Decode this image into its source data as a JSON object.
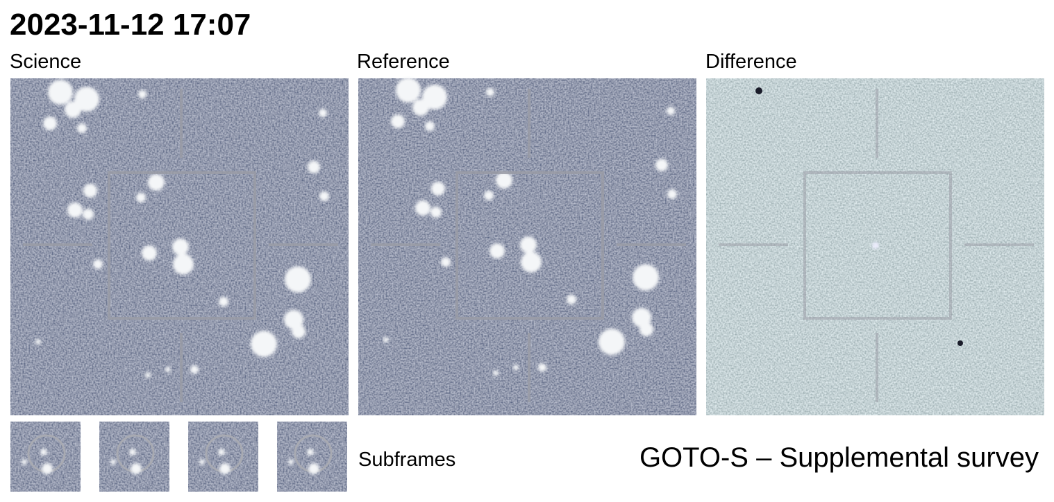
{
  "header": {
    "title": "2023-11-12 17:07"
  },
  "panels": [
    {
      "label": "Science"
    },
    {
      "label": "Reference"
    },
    {
      "label": "Difference"
    }
  ],
  "subframes": {
    "label": "Subframes"
  },
  "survey": "GOTO-S – Supplemental survey"
}
